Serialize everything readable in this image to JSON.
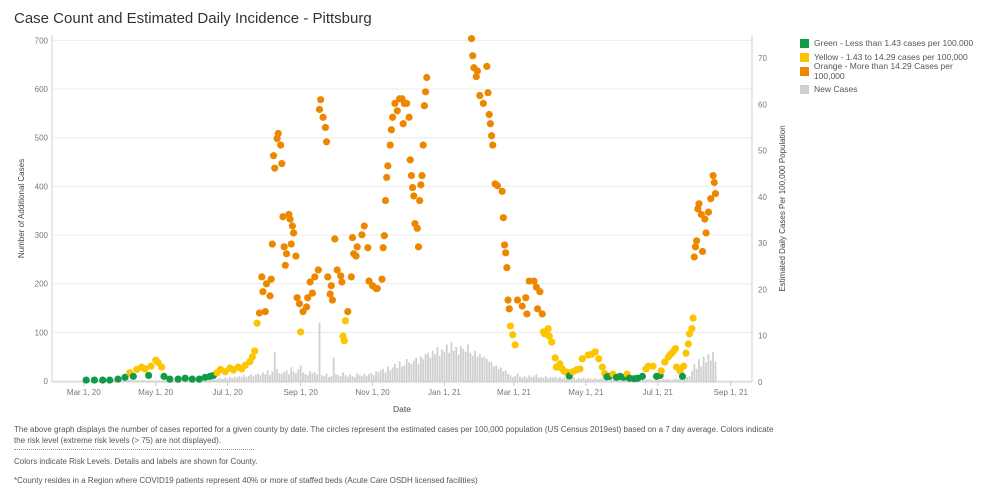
{
  "title": "Case Count and Estimated Daily Incidence - Pittsburg",
  "legend": {
    "items": [
      {
        "label": "Green - Less than 1.43 cases per 100,000",
        "color": "#119a48"
      },
      {
        "label": "Yellow - 1.43 to 14.29 cases per 100,000",
        "color": "#fdc400"
      },
      {
        "label": "Orange - More than 14.29 Cases per 100,000",
        "color": "#ee8700"
      },
      {
        "label": "New Cases",
        "color": "#cfcfcf"
      }
    ]
  },
  "notes": {
    "description": "The above graph displays the number of cases reported for a given county by date. The circles represent the estimated cases per 100,000 population (US Census 2019est) based on a 7 day average. Colors indicate the risk level (extreme risk levels (> 75) are not displayed).",
    "colors": "Colors indicate Risk Levels.  Details and labels are shown for County.",
    "footnote": "*County resides in a Region where COVID19 patients represent 40% or more of staffed beds (Acute Care OSDH licensed facilities)"
  },
  "chart_data": {
    "type": "bar+scatter",
    "title": "Case Count and Estimated Daily Incidence - Pittsburg",
    "xlabel": "Date",
    "ylabel_left": "Number of Additional Cases",
    "ylabel_right": "Estimated Daily Cases Per 100,000 Population",
    "xlim": [
      "2020-02-03",
      "2021-09-19"
    ],
    "ylim_left": [
      -2,
      711
    ],
    "ylim_right": [
      0,
      75
    ],
    "grid": true,
    "legend_position": "right",
    "xticks": [
      {
        "date": "2020-03-01",
        "label": "Mar 1, 20"
      },
      {
        "date": "2020-05-01",
        "label": "May 1, 20"
      },
      {
        "date": "2020-07-01",
        "label": "Jul 1, 20"
      },
      {
        "date": "2020-09-01",
        "label": "Sep 1, 20"
      },
      {
        "date": "2020-11-01",
        "label": "Nov 1, 20"
      },
      {
        "date": "2021-01-01",
        "label": "Jan 1, 21"
      },
      {
        "date": "2021-03-01",
        "label": "Mar 1, 21"
      },
      {
        "date": "2021-05-01",
        "label": "May 1, 21"
      },
      {
        "date": "2021-07-01",
        "label": "Jul 1, 21"
      },
      {
        "date": "2021-09-01",
        "label": "Sep 1, 21"
      }
    ],
    "yticks_left": [
      0,
      100,
      200,
      300,
      400,
      500,
      600,
      700
    ],
    "yticks_right": [
      0,
      10,
      20,
      30,
      40,
      50,
      60,
      70
    ],
    "risk_thresholds": {
      "green_below": 1.43,
      "orange_above": 14.29
    },
    "new_cases": {
      "start": "2020-03-03",
      "step_days": 2,
      "values": [
        0,
        0,
        0,
        1,
        1,
        2,
        2,
        3,
        4,
        3,
        2,
        3,
        4,
        2,
        3,
        2,
        1,
        2,
        3,
        2,
        1,
        2,
        1,
        1,
        2,
        1,
        1,
        2,
        1,
        1,
        1,
        2,
        1,
        2,
        1,
        1,
        2,
        1,
        2,
        2,
        1,
        2,
        3,
        2,
        2,
        3,
        2,
        3,
        3,
        2,
        4,
        3,
        5,
        4,
        6,
        3,
        5,
        6,
        4,
        7,
        5,
        8,
        6,
        9,
        7,
        10,
        8,
        12,
        9,
        11,
        14,
        10,
        13,
        15,
        12,
        18,
        14,
        22,
        12,
        20,
        60,
        25,
        16,
        15,
        18,
        22,
        14,
        28,
        20,
        16,
        24,
        32,
        18,
        15,
        12,
        20,
        16,
        18,
        14,
        120,
        12,
        10,
        15,
        8,
        10,
        48,
        14,
        12,
        10,
        18,
        12,
        9,
        14,
        10,
        8,
        16,
        12,
        10,
        14,
        11,
        14,
        16,
        12,
        20,
        18,
        22,
        25,
        18,
        30,
        22,
        28,
        35,
        26,
        40,
        30,
        32,
        45,
        38,
        35,
        42,
        48,
        36,
        50,
        45,
        55,
        58,
        48,
        62,
        55,
        70,
        52,
        65,
        60,
        75,
        58,
        80,
        62,
        70,
        55,
        72,
        66,
        60,
        75,
        58,
        52,
        62,
        50,
        55,
        48,
        50,
        45,
        40,
        38,
        30,
        32,
        25,
        28,
        20,
        22,
        15,
        12,
        8,
        10,
        15,
        9,
        7,
        10,
        6,
        12,
        8,
        9,
        14,
        7,
        8,
        6,
        10,
        5,
        8,
        7,
        9,
        6,
        8,
        5,
        7,
        10,
        6,
        5,
        8,
        4,
        6,
        5,
        7,
        4,
        6,
        5,
        3,
        6,
        4,
        5,
        7,
        4,
        5,
        3,
        4,
        6,
        3,
        5,
        4,
        3,
        5,
        4,
        3,
        5,
        2,
        4,
        3,
        4,
        2,
        3,
        4,
        3,
        2,
        4,
        3,
        2,
        5,
        3,
        4,
        2,
        3,
        5,
        4,
        3,
        6,
        4,
        8,
        10,
        20,
        35,
        25,
        45,
        30,
        50,
        38,
        55,
        42,
        60,
        40
      ]
    },
    "incidence": [
      [
        "2020-03-03",
        0.2
      ],
      [
        "2020-03-10",
        0.2
      ],
      [
        "2020-03-17",
        0.2
      ],
      [
        "2020-03-23",
        0.2
      ],
      [
        "2020-03-30",
        0.4
      ],
      [
        "2020-04-05",
        0.8
      ],
      [
        "2020-04-09",
        1.8
      ],
      [
        "2020-04-12",
        1.0
      ],
      [
        "2020-04-15",
        2.5
      ],
      [
        "2020-04-19",
        3.0
      ],
      [
        "2020-04-22",
        2.6
      ],
      [
        "2020-04-25",
        1.2
      ],
      [
        "2020-04-27",
        3.2
      ],
      [
        "2020-05-01",
        4.5
      ],
      [
        "2020-05-03",
        4.0
      ],
      [
        "2020-05-06",
        3.0
      ],
      [
        "2020-05-08",
        1.0
      ],
      [
        "2020-05-13",
        0.4
      ],
      [
        "2020-05-20",
        0.4
      ],
      [
        "2020-05-26",
        0.6
      ],
      [
        "2020-06-01",
        0.4
      ],
      [
        "2020-06-07",
        0.4
      ],
      [
        "2020-06-12",
        0.8
      ],
      [
        "2020-06-16",
        1.0
      ],
      [
        "2020-06-19",
        1.2
      ],
      [
        "2020-06-22",
        1.8
      ],
      [
        "2020-06-25",
        2.5
      ],
      [
        "2020-06-29",
        2.0
      ],
      [
        "2020-07-03",
        2.8
      ],
      [
        "2020-07-06",
        2.4
      ],
      [
        "2020-07-10",
        3.0
      ],
      [
        "2020-07-13",
        2.6
      ],
      [
        "2020-07-16",
        3.4
      ],
      [
        "2020-07-20",
        4.2
      ],
      [
        "2020-07-22",
        5.2
      ],
      [
        "2020-07-24",
        6.5
      ],
      [
        "2020-07-26",
        12.5
      ],
      [
        "2020-07-28",
        14.7
      ],
      [
        "2020-07-30",
        22.5
      ],
      [
        "2020-07-31",
        19.3
      ],
      [
        "2020-08-02",
        15.0
      ],
      [
        "2020-08-03",
        21.0
      ],
      [
        "2020-08-06",
        18.4
      ],
      [
        "2020-08-07",
        22.0
      ],
      [
        "2020-08-08",
        29.6
      ],
      [
        "2020-08-09",
        48.7
      ],
      [
        "2020-08-10",
        46.0
      ],
      [
        "2020-08-12",
        52.4
      ],
      [
        "2020-08-13",
        53.5
      ],
      [
        "2020-08-15",
        51.0
      ],
      [
        "2020-08-16",
        47.0
      ],
      [
        "2020-08-17",
        35.5
      ],
      [
        "2020-08-18",
        29.0
      ],
      [
        "2020-08-19",
        25.0
      ],
      [
        "2020-08-20",
        27.5
      ],
      [
        "2020-08-22",
        36.0
      ],
      [
        "2020-08-23",
        35.0
      ],
      [
        "2020-08-24",
        29.6
      ],
      [
        "2020-08-25",
        33.5
      ],
      [
        "2020-08-26",
        32.0
      ],
      [
        "2020-08-28",
        27.0
      ],
      [
        "2020-08-29",
        18.0
      ],
      [
        "2020-08-31",
        16.7
      ],
      [
        "2020-09-01",
        10.6
      ],
      [
        "2020-09-03",
        15.0
      ],
      [
        "2020-09-06",
        16.0
      ],
      [
        "2020-09-07",
        18.0
      ],
      [
        "2020-09-09",
        21.4
      ],
      [
        "2020-09-11",
        19.0
      ],
      [
        "2020-09-13",
        22.5
      ],
      [
        "2020-09-16",
        24.0
      ],
      [
        "2020-09-17",
        58.7
      ],
      [
        "2020-09-18",
        60.8
      ],
      [
        "2020-09-20",
        57.0
      ],
      [
        "2020-09-22",
        54.8
      ],
      [
        "2020-09-23",
        51.7
      ],
      [
        "2020-09-24",
        22.5
      ],
      [
        "2020-09-26",
        18.8
      ],
      [
        "2020-09-27",
        20.6
      ],
      [
        "2020-09-28",
        17.5
      ],
      [
        "2020-09-30",
        30.7
      ],
      [
        "2020-10-02",
        24.0
      ],
      [
        "2020-10-05",
        22.7
      ],
      [
        "2020-10-06",
        21.4
      ],
      [
        "2020-10-07",
        9.7
      ],
      [
        "2020-10-08",
        8.7
      ],
      [
        "2020-10-09",
        13.0
      ],
      [
        "2020-10-11",
        15.0
      ],
      [
        "2020-10-14",
        22.5
      ],
      [
        "2020-10-15",
        31.0
      ],
      [
        "2020-10-16",
        27.5
      ],
      [
        "2020-10-18",
        27.0
      ],
      [
        "2020-10-19",
        29.0
      ],
      [
        "2020-10-23",
        31.6
      ],
      [
        "2020-10-25",
        33.5
      ],
      [
        "2020-10-28",
        28.8
      ],
      [
        "2020-10-29",
        21.6
      ],
      [
        "2020-11-01",
        20.6
      ],
      [
        "2020-11-04",
        20.0
      ],
      [
        "2020-11-05",
        20.0
      ],
      [
        "2020-11-09",
        22.0
      ],
      [
        "2020-11-10",
        28.8
      ],
      [
        "2020-11-11",
        31.4
      ],
      [
        "2020-11-12",
        39.0
      ],
      [
        "2020-11-13",
        44.0
      ],
      [
        "2020-11-14",
        46.5
      ],
      [
        "2020-11-16",
        51.0
      ],
      [
        "2020-11-17",
        54.3
      ],
      [
        "2020-11-18",
        57.0
      ],
      [
        "2020-11-20",
        60.0
      ],
      [
        "2020-11-22",
        58.4
      ],
      [
        "2020-11-24",
        61.0
      ],
      [
        "2020-11-26",
        61.0
      ],
      [
        "2020-11-27",
        55.6
      ],
      [
        "2020-11-28",
        60.0
      ],
      [
        "2020-11-30",
        60.0
      ],
      [
        "2020-12-02",
        57.0
      ],
      [
        "2020-12-03",
        47.8
      ],
      [
        "2020-12-04",
        44.4
      ],
      [
        "2020-12-05",
        41.8
      ],
      [
        "2020-12-06",
        40.0
      ],
      [
        "2020-12-07",
        34.0
      ],
      [
        "2020-12-09",
        33.0
      ],
      [
        "2020-12-10",
        29.0
      ],
      [
        "2020-12-11",
        39.0
      ],
      [
        "2020-12-12",
        42.4
      ],
      [
        "2020-12-13",
        44.4
      ],
      [
        "2020-12-14",
        51.0
      ],
      [
        "2020-12-15",
        59.5
      ],
      [
        "2020-12-16",
        62.5
      ],
      [
        "2020-12-17",
        65.6
      ],
      [
        "2021-01-24",
        74.0
      ],
      [
        "2021-01-25",
        70.3
      ],
      [
        "2021-01-26",
        67.7
      ],
      [
        "2021-01-28",
        65.8
      ],
      [
        "2021-01-29",
        67.0
      ],
      [
        "2021-01-31",
        61.7
      ],
      [
        "2021-02-03",
        60.0
      ],
      [
        "2021-02-06",
        68.0
      ],
      [
        "2021-02-07",
        62.3
      ],
      [
        "2021-02-08",
        57.6
      ],
      [
        "2021-02-09",
        55.6
      ],
      [
        "2021-02-10",
        53.0
      ],
      [
        "2021-02-11",
        51.0
      ],
      [
        "2021-02-13",
        42.6
      ],
      [
        "2021-02-15",
        42.2
      ],
      [
        "2021-02-19",
        41.0
      ],
      [
        "2021-02-20",
        35.3
      ],
      [
        "2021-02-21",
        29.4
      ],
      [
        "2021-02-22",
        27.7
      ],
      [
        "2021-02-23",
        24.5
      ],
      [
        "2021-02-24",
        17.5
      ],
      [
        "2021-02-25",
        15.6
      ],
      [
        "2021-02-26",
        11.9
      ],
      [
        "2021-02-28",
        10.0
      ],
      [
        "2021-03-02",
        7.8
      ],
      [
        "2021-03-04",
        17.5
      ],
      [
        "2021-03-08",
        16.2
      ],
      [
        "2021-03-11",
        18.0
      ],
      [
        "2021-03-12",
        14.5
      ],
      [
        "2021-03-14",
        21.6
      ],
      [
        "2021-03-18",
        21.6
      ],
      [
        "2021-03-20",
        20.3
      ],
      [
        "2021-03-21",
        15.6
      ],
      [
        "2021-03-23",
        19.3
      ],
      [
        "2021-03-25",
        14.5
      ],
      [
        "2021-03-26",
        10.6
      ],
      [
        "2021-03-27",
        10.2
      ],
      [
        "2021-03-30",
        11.3
      ],
      [
        "2021-03-31",
        9.7
      ],
      [
        "2021-04-02",
        8.4
      ],
      [
        "2021-04-05",
        5.0
      ],
      [
        "2021-04-06",
        3.0
      ],
      [
        "2021-04-09",
        3.7
      ],
      [
        "2021-04-11",
        2.6
      ],
      [
        "2021-04-13",
        2.0
      ],
      [
        "2021-04-15",
        1.9
      ],
      [
        "2021-04-17",
        1.1
      ],
      [
        "2021-04-20",
        2.0
      ],
      [
        "2021-04-23",
        2.4
      ],
      [
        "2021-04-26",
        2.6
      ],
      [
        "2021-04-28",
        4.8
      ],
      [
        "2021-05-03",
        5.6
      ],
      [
        "2021-05-06",
        5.8
      ],
      [
        "2021-05-09",
        6.3
      ],
      [
        "2021-05-12",
        4.8
      ],
      [
        "2021-05-15",
        3.0
      ],
      [
        "2021-05-17",
        1.6
      ],
      [
        "2021-05-19",
        0.9
      ],
      [
        "2021-05-21",
        1.0
      ],
      [
        "2021-05-24",
        1.5
      ],
      [
        "2021-05-27",
        0.8
      ],
      [
        "2021-05-30",
        1.0
      ],
      [
        "2021-06-02",
        0.8
      ],
      [
        "2021-06-05",
        1.5
      ],
      [
        "2021-06-07",
        0.6
      ],
      [
        "2021-06-11",
        0.5
      ],
      [
        "2021-06-14",
        0.6
      ],
      [
        "2021-06-18",
        1.0
      ],
      [
        "2021-06-21",
        2.6
      ],
      [
        "2021-06-23",
        3.2
      ],
      [
        "2021-06-27",
        3.2
      ],
      [
        "2021-06-30",
        1.0
      ],
      [
        "2021-07-03",
        1.2
      ],
      [
        "2021-07-04",
        2.2
      ],
      [
        "2021-07-07",
        4.1
      ],
      [
        "2021-07-10",
        5.2
      ],
      [
        "2021-07-12",
        5.8
      ],
      [
        "2021-07-14",
        6.3
      ],
      [
        "2021-07-16",
        7.0
      ],
      [
        "2021-07-17",
        3.0
      ],
      [
        "2021-07-20",
        2.2
      ],
      [
        "2021-07-22",
        1.0
      ],
      [
        "2021-07-23",
        3.2
      ],
      [
        "2021-07-25",
        6.0
      ],
      [
        "2021-07-27",
        8.0
      ],
      [
        "2021-07-28",
        10.2
      ],
      [
        "2021-07-30",
        11.3
      ],
      [
        "2021-07-31",
        13.6
      ],
      [
        "2021-08-01",
        26.8
      ],
      [
        "2021-08-02",
        29.0
      ],
      [
        "2021-08-03",
        30.3
      ],
      [
        "2021-08-04",
        37.2
      ],
      [
        "2021-08-05",
        38.3
      ],
      [
        "2021-08-07",
        36.0
      ],
      [
        "2021-08-08",
        28.0
      ],
      [
        "2021-08-10",
        35.0
      ],
      [
        "2021-08-11",
        32.0
      ],
      [
        "2021-08-13",
        36.5
      ],
      [
        "2021-08-15",
        39.4
      ],
      [
        "2021-08-17",
        44.4
      ],
      [
        "2021-08-18",
        42.9
      ],
      [
        "2021-08-19",
        40.5
      ]
    ]
  }
}
